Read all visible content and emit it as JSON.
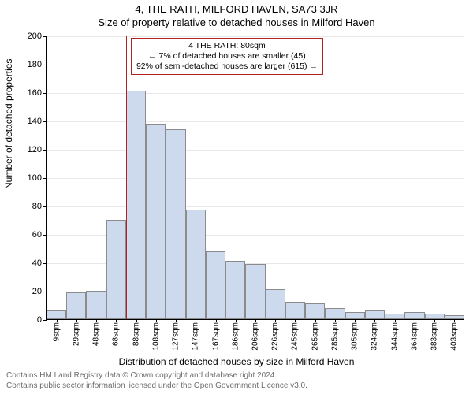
{
  "title": {
    "line1": "4, THE RATH, MILFORD HAVEN, SA73 3JR",
    "line2": "Size of property relative to detached houses in Milford Haven"
  },
  "chart": {
    "type": "histogram",
    "xlabel": "Distribution of detached houses by size in Milford Haven",
    "ylabel": "Number of detached properties",
    "ylim": [
      0,
      200
    ],
    "ytick_step": 20,
    "bar_color": "#cdd9ed",
    "bar_border_color": "#8b8b8b",
    "grid_color": "#e8e8e8",
    "axis_color": "#000000",
    "background_color": "#ffffff",
    "bins": {
      "start": 0,
      "width": 20,
      "count": 21
    },
    "values": [
      6,
      19,
      20,
      70,
      161,
      138,
      134,
      77,
      48,
      41,
      39,
      21,
      12,
      11,
      8,
      5,
      6,
      4,
      5,
      4,
      3
    ],
    "xticks_every_other_center": [
      "9sqm",
      "29sqm",
      "48sqm",
      "68sqm",
      "88sqm",
      "108sqm",
      "127sqm",
      "147sqm",
      "167sqm",
      "186sqm",
      "206sqm",
      "226sqm",
      "245sqm",
      "265sqm",
      "285sqm",
      "305sqm",
      "324sqm",
      "344sqm",
      "364sqm",
      "383sqm",
      "403sqm"
    ],
    "reference_line": {
      "x_value": 80,
      "color": "#b22222"
    },
    "annotation": {
      "lines": [
        "4 THE RATH: 80sqm",
        "← 7% of detached houses are smaller (45)",
        "92% of semi-detached houses are larger (615) →"
      ],
      "border_color": "#b22222",
      "fontsize": 10.5
    },
    "label_fontsize": 12,
    "tick_fontsize": 10
  },
  "footer": {
    "line1": "Contains HM Land Registry data © Crown copyright and database right 2024.",
    "line2": "Contains public sector information licensed under the Open Government Licence v3.0."
  }
}
